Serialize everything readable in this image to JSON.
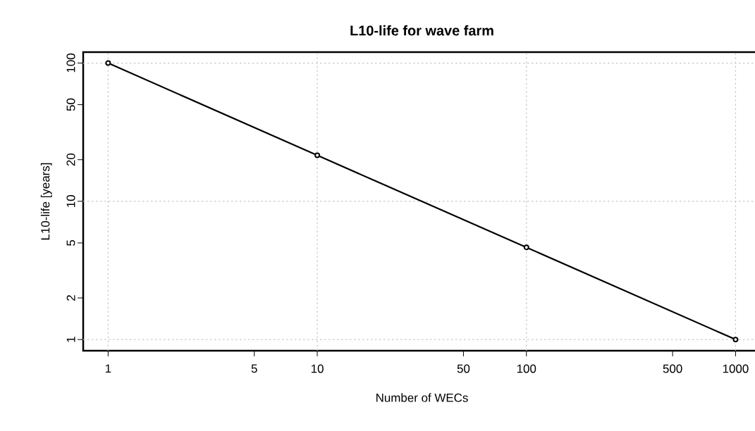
{
  "chart_data": {
    "type": "line",
    "title": "L10-life for wave farm",
    "xlabel": "Number of WECs",
    "ylabel": "L10-life [years]",
    "x": [
      1,
      10,
      100,
      1000
    ],
    "series": [
      {
        "color": "#000000",
        "values": [
          100,
          21.5,
          4.64,
          1
        ]
      }
    ],
    "log": "xy",
    "marker": "circle",
    "line_style": "solid",
    "grid": true,
    "xlim": [
      0.76,
      1318
    ],
    "ylim": [
      0.83,
      120
    ],
    "xticks": [
      1,
      5,
      10,
      50,
      100,
      500,
      1000
    ],
    "yticks": [
      1,
      2,
      5,
      10,
      20,
      50,
      100
    ]
  }
}
